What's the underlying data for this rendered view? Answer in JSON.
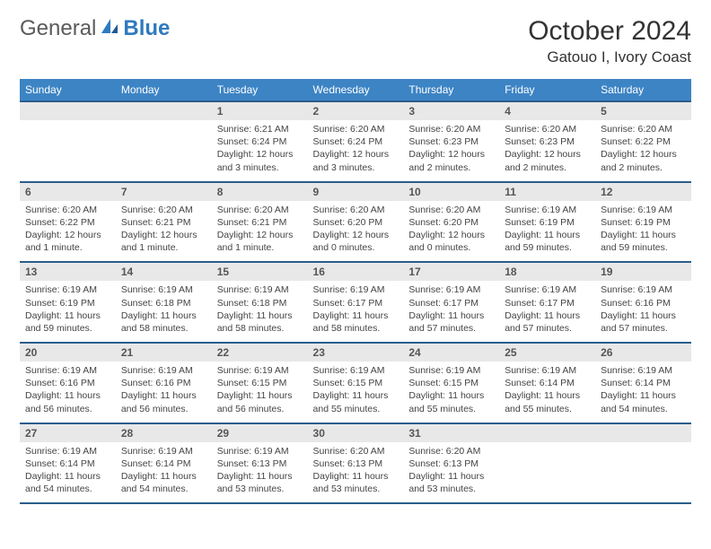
{
  "logo": {
    "text1": "General",
    "text2": "Blue"
  },
  "title": "October 2024",
  "location": "Gatouo I, Ivory Coast",
  "colors": {
    "header_bg": "#3d84c4",
    "header_border": "#2a5e8c",
    "daynum_bg": "#e8e8e8",
    "logo_gray": "#5a5a5a",
    "logo_blue": "#2f7abf"
  },
  "weekdays": [
    "Sunday",
    "Monday",
    "Tuesday",
    "Wednesday",
    "Thursday",
    "Friday",
    "Saturday"
  ],
  "leading_blanks": 2,
  "days": [
    {
      "n": 1,
      "sunrise": "6:21 AM",
      "sunset": "6:24 PM",
      "daylight": "12 hours and 3 minutes."
    },
    {
      "n": 2,
      "sunrise": "6:20 AM",
      "sunset": "6:24 PM",
      "daylight": "12 hours and 3 minutes."
    },
    {
      "n": 3,
      "sunrise": "6:20 AM",
      "sunset": "6:23 PM",
      "daylight": "12 hours and 2 minutes."
    },
    {
      "n": 4,
      "sunrise": "6:20 AM",
      "sunset": "6:23 PM",
      "daylight": "12 hours and 2 minutes."
    },
    {
      "n": 5,
      "sunrise": "6:20 AM",
      "sunset": "6:22 PM",
      "daylight": "12 hours and 2 minutes."
    },
    {
      "n": 6,
      "sunrise": "6:20 AM",
      "sunset": "6:22 PM",
      "daylight": "12 hours and 1 minute."
    },
    {
      "n": 7,
      "sunrise": "6:20 AM",
      "sunset": "6:21 PM",
      "daylight": "12 hours and 1 minute."
    },
    {
      "n": 8,
      "sunrise": "6:20 AM",
      "sunset": "6:21 PM",
      "daylight": "12 hours and 1 minute."
    },
    {
      "n": 9,
      "sunrise": "6:20 AM",
      "sunset": "6:20 PM",
      "daylight": "12 hours and 0 minutes."
    },
    {
      "n": 10,
      "sunrise": "6:20 AM",
      "sunset": "6:20 PM",
      "daylight": "12 hours and 0 minutes."
    },
    {
      "n": 11,
      "sunrise": "6:19 AM",
      "sunset": "6:19 PM",
      "daylight": "11 hours and 59 minutes."
    },
    {
      "n": 12,
      "sunrise": "6:19 AM",
      "sunset": "6:19 PM",
      "daylight": "11 hours and 59 minutes."
    },
    {
      "n": 13,
      "sunrise": "6:19 AM",
      "sunset": "6:19 PM",
      "daylight": "11 hours and 59 minutes."
    },
    {
      "n": 14,
      "sunrise": "6:19 AM",
      "sunset": "6:18 PM",
      "daylight": "11 hours and 58 minutes."
    },
    {
      "n": 15,
      "sunrise": "6:19 AM",
      "sunset": "6:18 PM",
      "daylight": "11 hours and 58 minutes."
    },
    {
      "n": 16,
      "sunrise": "6:19 AM",
      "sunset": "6:17 PM",
      "daylight": "11 hours and 58 minutes."
    },
    {
      "n": 17,
      "sunrise": "6:19 AM",
      "sunset": "6:17 PM",
      "daylight": "11 hours and 57 minutes."
    },
    {
      "n": 18,
      "sunrise": "6:19 AM",
      "sunset": "6:17 PM",
      "daylight": "11 hours and 57 minutes."
    },
    {
      "n": 19,
      "sunrise": "6:19 AM",
      "sunset": "6:16 PM",
      "daylight": "11 hours and 57 minutes."
    },
    {
      "n": 20,
      "sunrise": "6:19 AM",
      "sunset": "6:16 PM",
      "daylight": "11 hours and 56 minutes."
    },
    {
      "n": 21,
      "sunrise": "6:19 AM",
      "sunset": "6:16 PM",
      "daylight": "11 hours and 56 minutes."
    },
    {
      "n": 22,
      "sunrise": "6:19 AM",
      "sunset": "6:15 PM",
      "daylight": "11 hours and 56 minutes."
    },
    {
      "n": 23,
      "sunrise": "6:19 AM",
      "sunset": "6:15 PM",
      "daylight": "11 hours and 55 minutes."
    },
    {
      "n": 24,
      "sunrise": "6:19 AM",
      "sunset": "6:15 PM",
      "daylight": "11 hours and 55 minutes."
    },
    {
      "n": 25,
      "sunrise": "6:19 AM",
      "sunset": "6:14 PM",
      "daylight": "11 hours and 55 minutes."
    },
    {
      "n": 26,
      "sunrise": "6:19 AM",
      "sunset": "6:14 PM",
      "daylight": "11 hours and 54 minutes."
    },
    {
      "n": 27,
      "sunrise": "6:19 AM",
      "sunset": "6:14 PM",
      "daylight": "11 hours and 54 minutes."
    },
    {
      "n": 28,
      "sunrise": "6:19 AM",
      "sunset": "6:14 PM",
      "daylight": "11 hours and 54 minutes."
    },
    {
      "n": 29,
      "sunrise": "6:19 AM",
      "sunset": "6:13 PM",
      "daylight": "11 hours and 53 minutes."
    },
    {
      "n": 30,
      "sunrise": "6:20 AM",
      "sunset": "6:13 PM",
      "daylight": "11 hours and 53 minutes."
    },
    {
      "n": 31,
      "sunrise": "6:20 AM",
      "sunset": "6:13 PM",
      "daylight": "11 hours and 53 minutes."
    }
  ],
  "labels": {
    "sunrise": "Sunrise:",
    "sunset": "Sunset:",
    "daylight": "Daylight:"
  }
}
